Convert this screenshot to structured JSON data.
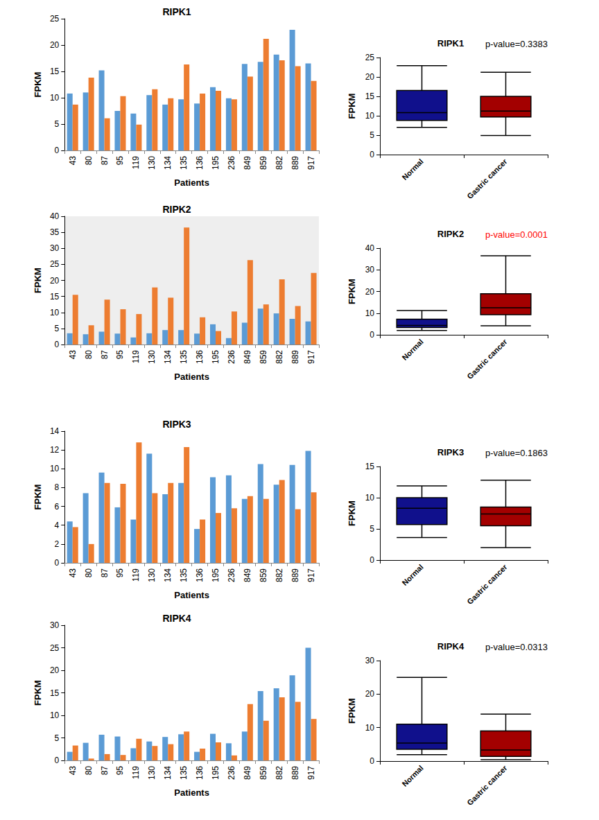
{
  "chart_data": [
    {
      "type": "bar",
      "title": "RIPK1",
      "x_label": "Patients",
      "y_label": "FPKM",
      "categories": [
        "43",
        "80",
        "87",
        "95",
        "119",
        "130",
        "134",
        "135",
        "136",
        "195",
        "236",
        "849",
        "859",
        "882",
        "889",
        "917"
      ],
      "series": [
        {
          "color": "#5B9BD5",
          "values": [
            10.8,
            11,
            15.2,
            7.5,
            7,
            10.5,
            8.7,
            9.7,
            8.9,
            12,
            9.9,
            16.4,
            16.8,
            18.2,
            22.9,
            16.5
          ]
        },
        {
          "color": "#ED7D31",
          "values": [
            8.7,
            13.8,
            6.1,
            10.3,
            4.9,
            11.6,
            9.9,
            16.3,
            10.8,
            11.3,
            9.7,
            14,
            21.2,
            17.1,
            16,
            13.2
          ]
        }
      ],
      "ylim": [
        0,
        25
      ],
      "yticks": [
        0,
        5,
        10,
        15,
        20,
        25
      ],
      "grid": false
    },
    {
      "type": "boxplot",
      "title": "RIPK1",
      "y_label": "FPKM",
      "categories": [
        "Normal",
        "Gastric cancer"
      ],
      "colors": [
        "#10108c",
        "#a30000"
      ],
      "values": [
        [
          7,
          8.8,
          10.8,
          16.5,
          22.9
        ],
        [
          4.9,
          9.7,
          11.2,
          15,
          21.2
        ]
      ],
      "annotations": [
        {
          "text": "p-value=0.3383",
          "color": "#000000"
        }
      ],
      "ylim": [
        0,
        25
      ],
      "yticks": [
        0,
        5,
        10,
        15,
        20,
        25
      ],
      "grid": false
    },
    {
      "type": "bar",
      "title": "RIPK2",
      "x_label": "Patients",
      "y_label": "FPKM",
      "categories": [
        "43",
        "80",
        "87",
        "95",
        "119",
        "130",
        "134",
        "135",
        "136",
        "195",
        "236",
        "849",
        "859",
        "882",
        "889",
        "917"
      ],
      "series": [
        {
          "color": "#5B9BD5",
          "values": [
            3.5,
            3.2,
            4,
            3.4,
            2.2,
            3.5,
            4.5,
            4.5,
            3.4,
            6.3,
            2,
            6.8,
            11.2,
            9.7,
            8,
            7.2
          ]
        },
        {
          "color": "#ED7D31",
          "values": [
            15.5,
            6,
            14,
            11,
            9.5,
            17.8,
            14.6,
            36.5,
            8.5,
            4.2,
            10.3,
            26.3,
            12.5,
            20.3,
            12,
            22.3
          ]
        }
      ],
      "ylim": [
        0,
        40
      ],
      "yticks": [
        0,
        5,
        10,
        15,
        20,
        25,
        30,
        35,
        40
      ],
      "grid": false
    },
    {
      "type": "boxplot",
      "title": "RIPK2",
      "y_label": "FPKM",
      "categories": [
        "Normal",
        "Gastric cancer"
      ],
      "colors": [
        "#10108c",
        "#a30000"
      ],
      "values": [
        [
          2,
          3.4,
          4.3,
          7.2,
          11.2
        ],
        [
          4.2,
          9.3,
          12.5,
          19,
          36.5
        ]
      ],
      "annotations": [
        {
          "text": "p-value=0.0001",
          "color": "#ff0000"
        }
      ],
      "ylim": [
        0,
        40
      ],
      "yticks": [
        0,
        10,
        20,
        30,
        40
      ],
      "grid": false
    },
    {
      "type": "bar",
      "title": "RIPK3",
      "x_label": "Patients",
      "y_label": "FPKM",
      "categories": [
        "43",
        "80",
        "87",
        "95",
        "119",
        "130",
        "134",
        "135",
        "136",
        "195",
        "236",
        "849",
        "859",
        "882",
        "889",
        "917"
      ],
      "series": [
        {
          "color": "#5B9BD5",
          "values": [
            4.4,
            7.4,
            9.6,
            5.9,
            4.6,
            11.6,
            7.3,
            8.5,
            3.6,
            9.1,
            9.3,
            6.8,
            10.5,
            8.3,
            10.4,
            11.9
          ]
        },
        {
          "color": "#ED7D31",
          "values": [
            3.8,
            2,
            8.5,
            8.4,
            12.8,
            7.4,
            8.5,
            12.3,
            4.6,
            5.3,
            5.8,
            7.1,
            6.8,
            8.8,
            5.7,
            7.5
          ]
        }
      ],
      "ylim": [
        0,
        14
      ],
      "yticks": [
        0,
        2,
        4,
        6,
        8,
        10,
        12,
        14
      ],
      "grid": false
    },
    {
      "type": "boxplot",
      "title": "RIPK3",
      "y_label": "FPKM",
      "categories": [
        "Normal",
        "Gastric cancer"
      ],
      "colors": [
        "#10108c",
        "#a30000"
      ],
      "values": [
        [
          3.6,
          5.7,
          8.3,
          10,
          11.9
        ],
        [
          2,
          5.5,
          7.4,
          8.5,
          12.8
        ]
      ],
      "annotations": [
        {
          "text": "p-value=0.1863",
          "color": "#000000"
        }
      ],
      "ylim": [
        0,
        15
      ],
      "yticks": [
        0,
        5,
        10,
        15
      ],
      "grid": false
    },
    {
      "type": "bar",
      "title": "RIPK4",
      "x_label": "Patients",
      "y_label": "FPKM",
      "categories": [
        "43",
        "80",
        "87",
        "95",
        "119",
        "130",
        "134",
        "135",
        "136",
        "195",
        "236",
        "849",
        "859",
        "882",
        "889",
        "917"
      ],
      "series": [
        {
          "color": "#5B9BD5",
          "values": [
            1.9,
            3.9,
            5.7,
            5.3,
            2.7,
            4.2,
            5.2,
            5.8,
            1.9,
            5.9,
            3.8,
            6.4,
            15.4,
            16,
            18.9,
            25
          ]
        },
        {
          "color": "#ED7D31",
          "values": [
            3.3,
            0.4,
            1.4,
            1.2,
            4.8,
            3.2,
            3.6,
            6.4,
            2.6,
            4,
            1.1,
            12.5,
            8.8,
            14,
            13,
            9.2
          ]
        }
      ],
      "ylim": [
        0,
        30
      ],
      "yticks": [
        0,
        5,
        10,
        15,
        20,
        25,
        30
      ],
      "grid": false
    },
    {
      "type": "boxplot",
      "title": "RIPK4",
      "y_label": "FPKM",
      "categories": [
        "Normal",
        "Gastric cancer"
      ],
      "colors": [
        "#10108c",
        "#a30000"
      ],
      "values": [
        [
          1.9,
          3.5,
          5.4,
          11,
          25
        ],
        [
          0.4,
          1.4,
          3.3,
          9,
          14
        ]
      ],
      "annotations": [
        {
          "text": "p-value=0.0313",
          "color": "#000000"
        }
      ],
      "ylim": [
        0,
        30
      ],
      "yticks": [
        0,
        10,
        20,
        30
      ],
      "grid": false
    }
  ]
}
